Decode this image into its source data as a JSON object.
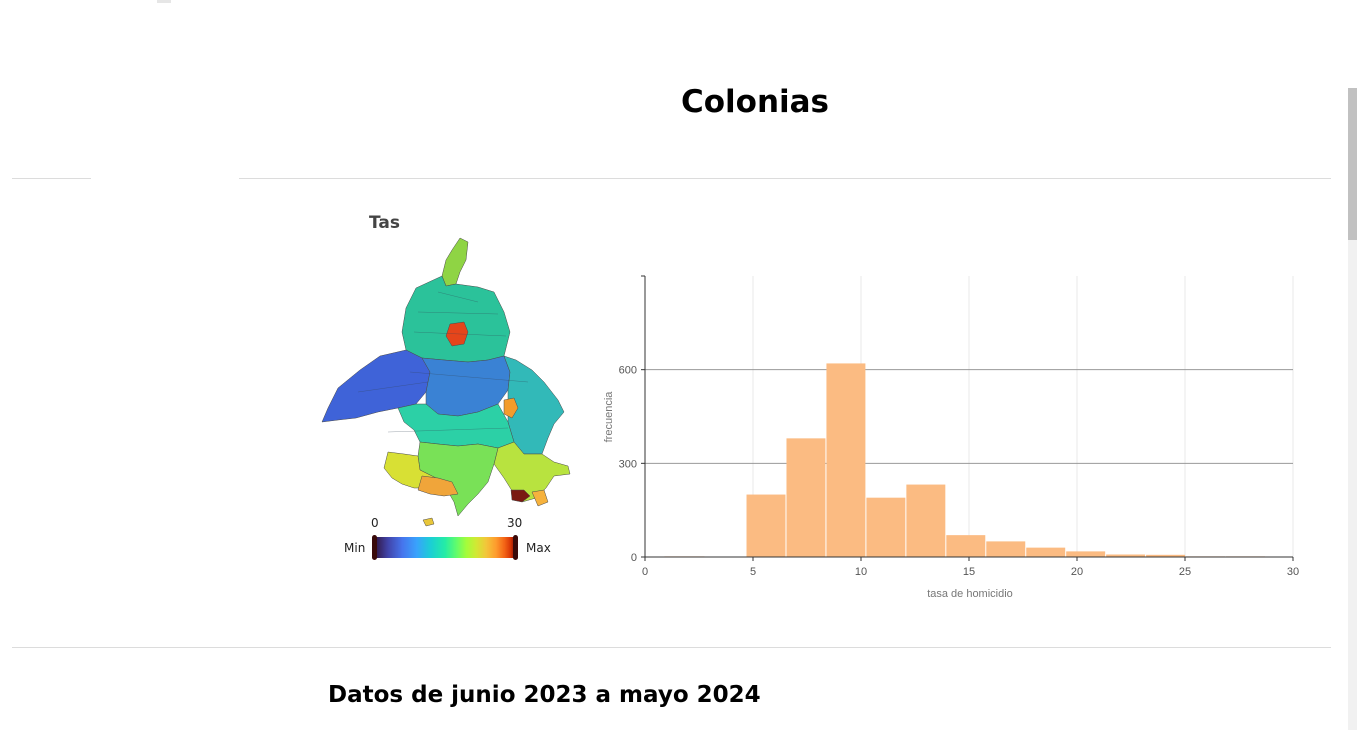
{
  "page": {
    "title": "Colonias",
    "section_title": "Datos de junio 2023 a mayo 2024"
  },
  "map": {
    "title": "Tas",
    "legend": {
      "min_label": "Min",
      "max_label": "Max",
      "min_value": "0",
      "max_value": "30",
      "colorscale": "turbo"
    }
  },
  "chart_data": {
    "type": "bar",
    "xlabel": "tasa de homicidio",
    "ylabel": "frecuencia",
    "xlim": [
      0,
      30
    ],
    "ylim": [
      0,
      900
    ],
    "xticks": [
      0,
      5,
      10,
      15,
      20,
      25,
      30
    ],
    "yticks": [
      0,
      300,
      600
    ],
    "bar_color": "#fbbb82",
    "bins": [
      {
        "x0": 0.9,
        "x1": 2.8,
        "value": 2
      },
      {
        "x0": 2.8,
        "x1": 4.7,
        "value": 1
      },
      {
        "x0": 4.7,
        "x1": 6.55,
        "value": 200
      },
      {
        "x0": 6.55,
        "x1": 8.4,
        "value": 380
      },
      {
        "x0": 8.4,
        "x1": 10.25,
        "value": 620
      },
      {
        "x0": 10.25,
        "x1": 12.1,
        "value": 190
      },
      {
        "x0": 12.1,
        "x1": 13.95,
        "value": 232
      },
      {
        "x0": 13.95,
        "x1": 15.8,
        "value": 70
      },
      {
        "x0": 15.8,
        "x1": 17.65,
        "value": 50
      },
      {
        "x0": 17.65,
        "x1": 19.5,
        "value": 30
      },
      {
        "x0": 19.5,
        "x1": 21.35,
        "value": 18
      },
      {
        "x0": 21.35,
        "x1": 23.2,
        "value": 8
      },
      {
        "x0": 23.2,
        "x1": 25.05,
        "value": 7
      },
      {
        "x0": 25.05,
        "x1": 26.9,
        "value": 2
      },
      {
        "x0": 26.9,
        "x1": 28.75,
        "value": 2
      }
    ]
  }
}
